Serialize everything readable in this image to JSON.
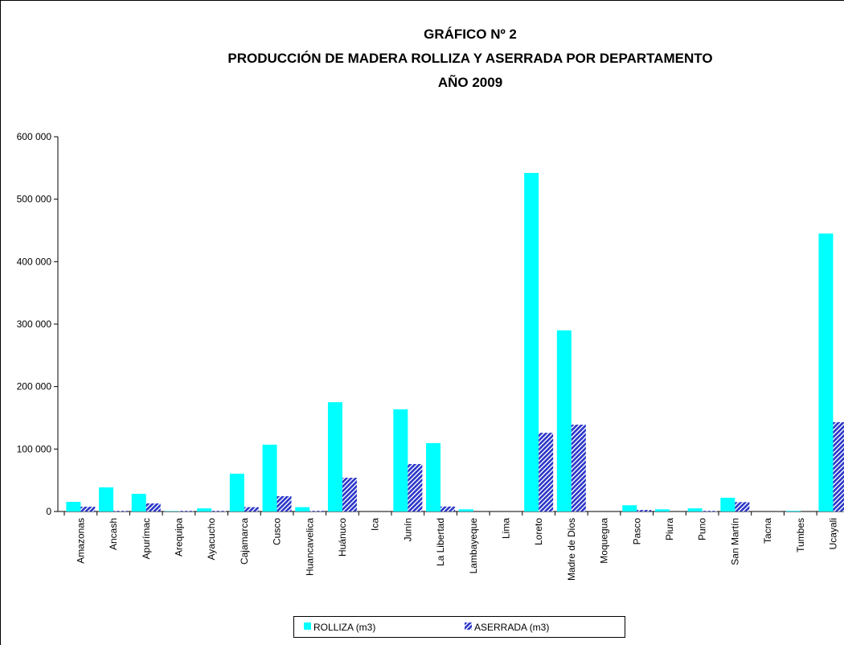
{
  "chart_data": {
    "type": "bar",
    "title_lines": [
      "GRÁFICO Nº 2",
      "PRODUCCIÓN DE MADERA ROLLIZA  Y ASERRADA POR DEPARTAMENTO",
      "AÑO 2009"
    ],
    "categories": [
      "Amazonas",
      "Ancash",
      "Apurímac",
      "Arequipa",
      "Ayacucho",
      "Cajamarca",
      "Cusco",
      "Huancavelica",
      "Huánuco",
      "Ica",
      "Junín",
      "La Libertad",
      "Lambayeque",
      "Lima",
      "Loreto",
      "Madre de Dios",
      "Moquegua",
      "Pasco",
      "Piura",
      "Puno",
      "San Martín",
      "Tacna",
      "Tumbes",
      "Ucayali"
    ],
    "series": [
      {
        "name": "ROLLIZA (m3)",
        "color": "#00ffff",
        "values": [
          15500,
          38600,
          28300,
          500,
          5000,
          60500,
          107000,
          7000,
          175000,
          0,
          163500,
          109500,
          3500,
          0,
          542000,
          290000,
          0,
          10000,
          3500,
          5000,
          22000,
          0,
          1000,
          445000
        ]
      },
      {
        "name": "ASERRADA (m3)",
        "color": "#2a35c8",
        "pattern": "hatch",
        "values": [
          7700,
          1000,
          13000,
          1000,
          1000,
          7000,
          24500,
          1000,
          54000,
          0,
          76000,
          8000,
          0,
          0,
          126000,
          139000,
          0,
          2500,
          0,
          1000,
          15000,
          0,
          0,
          143000
        ]
      }
    ],
    "ylim": [
      0,
      600000
    ],
    "yticks": [
      0,
      {
        "value": 100000,
        "label": "100 000"
      },
      {
        "value": 200000,
        "label": "200 000"
      },
      {
        "value": 300000,
        "label": "300 000"
      },
      {
        "value": 400000,
        "label": "400 000"
      },
      {
        "value": 500000,
        "label": "500 000"
      },
      {
        "value": 600000,
        "label": "600 000"
      }
    ],
    "grid": false,
    "legend": "bottom"
  }
}
